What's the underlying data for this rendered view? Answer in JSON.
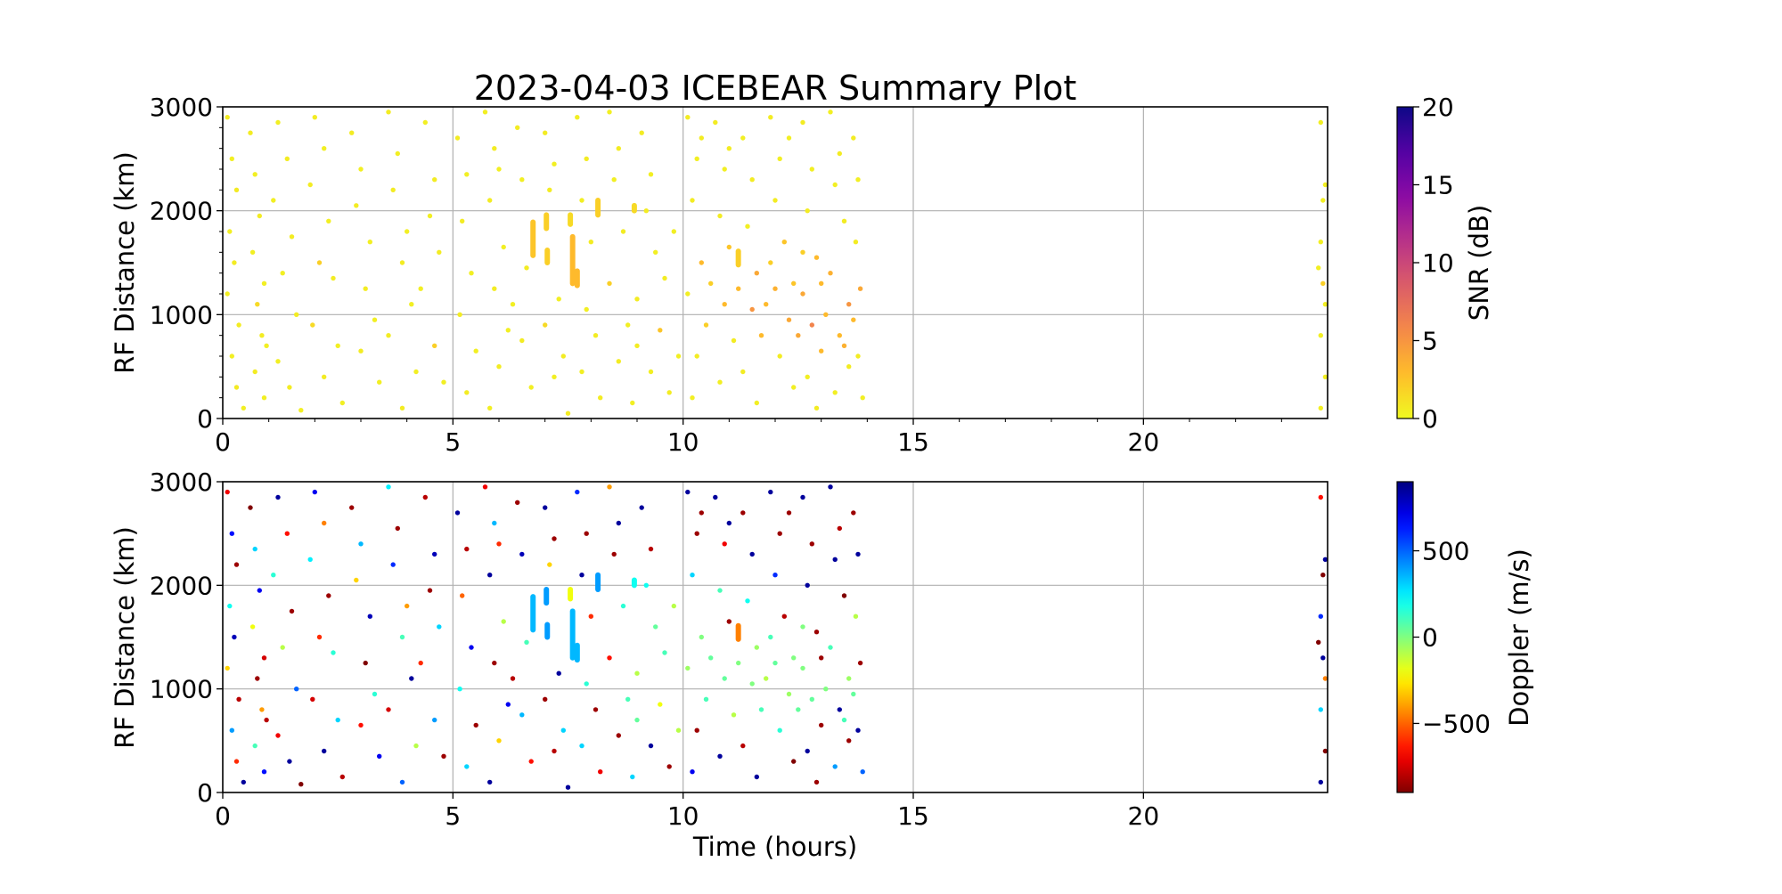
{
  "chart_data": [
    {
      "type": "scatter",
      "panel": "top",
      "title": "2023-04-03 ICEBEAR Summary Plot",
      "xlabel": "",
      "ylabel": "RF Distance (km)",
      "xlim": [
        0,
        24
      ],
      "ylim": [
        0,
        3000
      ],
      "xticks": [
        "0",
        "5",
        "10",
        "15",
        "20"
      ],
      "yticks": [
        "0",
        "1000",
        "2000",
        "3000"
      ],
      "grid": true,
      "color_variable": "snr",
      "colorbar": {
        "label": "SNR (dB)",
        "range": [
          0,
          20
        ],
        "ticks": [
          "0",
          "5",
          "10",
          "15",
          "20"
        ],
        "colormap": "plasma_r"
      }
    },
    {
      "type": "scatter",
      "panel": "bottom",
      "title": "",
      "xlabel": "Time (hours)",
      "ylabel": "RF Distance (km)",
      "xlim": [
        0,
        24
      ],
      "ylim": [
        0,
        3000
      ],
      "xticks": [
        "0",
        "5",
        "10",
        "15",
        "20"
      ],
      "yticks": [
        "0",
        "1000",
        "2000",
        "3000"
      ],
      "grid": true,
      "color_variable": "doppler",
      "colorbar": {
        "label": "Doppler (m/s)",
        "range": [
          -900,
          900
        ],
        "ticks": [
          "−500",
          "0",
          "500"
        ],
        "tick_values": [
          -500,
          0,
          500
        ],
        "colormap": "jet_r"
      }
    }
  ],
  "points_columns": [
    "time_hours",
    "rf_distance_km",
    "snr_db",
    "doppler_ms"
  ],
  "points": [
    [
      0.1,
      2900,
      0.6,
      -700
    ],
    [
      0.2,
      2500,
      0.5,
      650
    ],
    [
      0.3,
      2200,
      0.7,
      -850
    ],
    [
      0.15,
      1800,
      0.5,
      200
    ],
    [
      0.25,
      1500,
      0.6,
      800
    ],
    [
      0.1,
      1200,
      0.5,
      -300
    ],
    [
      0.35,
      900,
      0.6,
      -800
    ],
    [
      0.2,
      600,
      0.5,
      400
    ],
    [
      0.3,
      300,
      0.7,
      -600
    ],
    [
      0.45,
      100,
      0.5,
      850
    ],
    [
      0.6,
      2750,
      0.6,
      -900
    ],
    [
      0.7,
      2350,
      0.5,
      300
    ],
    [
      0.8,
      1950,
      0.6,
      700
    ],
    [
      0.65,
      1600,
      0.5,
      -200
    ],
    [
      0.9,
      1300,
      0.5,
      -750
    ],
    [
      0.75,
      1100,
      1.5,
      -850
    ],
    [
      0.85,
      800,
      0.6,
      -400
    ],
    [
      0.95,
      700,
      0.5,
      -800
    ],
    [
      0.7,
      450,
      0.6,
      100
    ],
    [
      0.9,
      200,
      0.5,
      650
    ],
    [
      1.2,
      2850,
      0.5,
      850
    ],
    [
      1.4,
      2500,
      0.6,
      -650
    ],
    [
      1.1,
      2100,
      0.5,
      150
    ],
    [
      1.5,
      1750,
      0.6,
      -850
    ],
    [
      1.3,
      1400,
      0.5,
      -100
    ],
    [
      1.6,
      1000,
      0.6,
      500
    ],
    [
      1.2,
      550,
      0.5,
      -700
    ],
    [
      1.45,
      300,
      0.6,
      850
    ],
    [
      1.7,
      80,
      0.5,
      -900
    ],
    [
      2.0,
      2900,
      0.6,
      700
    ],
    [
      2.2,
      2600,
      0.5,
      -450
    ],
    [
      1.9,
      2250,
      0.6,
      250
    ],
    [
      2.3,
      1900,
      0.5,
      -850
    ],
    [
      2.1,
      1500,
      2.0,
      -600
    ],
    [
      2.4,
      1350,
      0.6,
      150
    ],
    [
      1.95,
      900,
      1.5,
      -750
    ],
    [
      2.5,
      700,
      0.5,
      300
    ],
    [
      2.2,
      400,
      0.6,
      850
    ],
    [
      2.6,
      150,
      0.5,
      -800
    ],
    [
      2.8,
      2750,
      0.6,
      -850
    ],
    [
      3.0,
      2400,
      0.5,
      350
    ],
    [
      2.9,
      2050,
      0.6,
      -300
    ],
    [
      3.2,
      1700,
      0.5,
      800
    ],
    [
      3.1,
      1250,
      0.6,
      -900
    ],
    [
      3.3,
      950,
      0.5,
      150
    ],
    [
      3.0,
      650,
      0.6,
      -650
    ],
    [
      3.4,
      350,
      0.5,
      700
    ],
    [
      3.6,
      2950,
      0.6,
      250
    ],
    [
      3.8,
      2550,
      0.5,
      -850
    ],
    [
      3.7,
      2200,
      0.6,
      600
    ],
    [
      4.0,
      1800,
      0.5,
      -400
    ],
    [
      3.9,
      1500,
      0.6,
      100
    ],
    [
      4.1,
      1100,
      0.5,
      850
    ],
    [
      3.6,
      800,
      0.6,
      -750
    ],
    [
      4.2,
      450,
      0.5,
      -100
    ],
    [
      3.9,
      100,
      0.6,
      500
    ],
    [
      4.4,
      2850,
      0.5,
      -800
    ],
    [
      4.6,
      2300,
      0.6,
      800
    ],
    [
      4.5,
      1950,
      0.5,
      -850
    ],
    [
      4.7,
      1600,
      0.6,
      300
    ],
    [
      4.3,
      1250,
      0.5,
      -600
    ],
    [
      4.6,
      700,
      2.0,
      400
    ],
    [
      4.8,
      350,
      0.5,
      -850
    ],
    [
      5.1,
      2700,
      0.6,
      850
    ],
    [
      5.3,
      2350,
      0.5,
      -800
    ],
    [
      5.2,
      1900,
      0.6,
      -500
    ],
    [
      5.4,
      1400,
      0.5,
      700
    ],
    [
      5.15,
      1000,
      0.6,
      200
    ],
    [
      5.5,
      650,
      0.5,
      -850
    ],
    [
      5.3,
      250,
      0.6,
      300
    ],
    [
      5.7,
      2950,
      0.5,
      -700
    ],
    [
      5.9,
      2600,
      0.6,
      350
    ],
    [
      6.0,
      2400,
      0.5,
      -600
    ],
    [
      5.8,
      2100,
      0.6,
      850
    ],
    [
      6.1,
      1650,
      0.5,
      -100
    ],
    [
      5.9,
      1250,
      0.6,
      -850
    ],
    [
      6.2,
      850,
      0.5,
      700
    ],
    [
      6.0,
      500,
      0.6,
      -300
    ],
    [
      5.8,
      100,
      0.5,
      850
    ],
    [
      6.4,
      2800,
      0.6,
      -850
    ],
    [
      6.5,
      2300,
      0.5,
      800
    ],
    [
      6.6,
      1450,
      0.6,
      100
    ],
    [
      6.3,
      1100,
      0.5,
      -800
    ],
    [
      6.5,
      750,
      0.6,
      350
    ],
    [
      6.7,
      300,
      0.5,
      -650
    ],
    [
      7.0,
      2750,
      0.6,
      850
    ],
    [
      7.2,
      2450,
      0.5,
      -850
    ],
    [
      7.1,
      2200,
      0.6,
      -300
    ],
    [
      7.3,
      1150,
      0.5,
      850
    ],
    [
      7.0,
      900,
      1.5,
      -850
    ],
    [
      7.4,
      600,
      0.6,
      300
    ],
    [
      7.2,
      400,
      0.5,
      -800
    ],
    [
      7.5,
      50,
      0.6,
      850
    ],
    [
      7.7,
      2900,
      0.5,
      600
    ],
    [
      7.9,
      2500,
      0.6,
      -850
    ],
    [
      7.8,
      2100,
      0.5,
      850
    ],
    [
      8.0,
      1700,
      0.6,
      -600
    ],
    [
      7.9,
      1050,
      0.5,
      150
    ],
    [
      8.1,
      800,
      0.6,
      -850
    ],
    [
      7.8,
      450,
      0.5,
      300
    ],
    [
      8.2,
      200,
      0.6,
      -700
    ],
    [
      8.4,
      2950,
      0.5,
      -400
    ],
    [
      8.6,
      2600,
      0.6,
      850
    ],
    [
      8.5,
      2300,
      0.5,
      -850
    ],
    [
      8.7,
      1800,
      0.6,
      150
    ],
    [
      8.4,
      1300,
      2.0,
      -650
    ],
    [
      8.8,
      900,
      0.5,
      100
    ],
    [
      8.6,
      550,
      0.6,
      -850
    ],
    [
      8.9,
      150,
      0.5,
      300
    ],
    [
      9.1,
      2750,
      0.6,
      850
    ],
    [
      9.3,
      2350,
      0.5,
      -800
    ],
    [
      9.2,
      2000,
      0.6,
      200
    ],
    [
      9.4,
      1600,
      0.5,
      50
    ],
    [
      9.0,
      1150,
      0.6,
      -100
    ],
    [
      9.5,
      850,
      2.5,
      -200
    ],
    [
      9.3,
      450,
      0.5,
      850
    ],
    [
      9.7,
      250,
      0.6,
      -850
    ],
    [
      9.8,
      1800,
      0.5,
      -100
    ],
    [
      9.6,
      1350,
      0.6,
      100
    ],
    [
      10.1,
      2900,
      0.6,
      850
    ],
    [
      10.3,
      2500,
      0.5,
      -850
    ],
    [
      10.2,
      2100,
      0.6,
      300
    ],
    [
      10.4,
      1500,
      3.0,
      0
    ],
    [
      10.1,
      1200,
      0.5,
      -50
    ],
    [
      10.5,
      900,
      2.0,
      100
    ],
    [
      10.3,
      600,
      0.6,
      -850
    ],
    [
      10.2,
      200,
      0.5,
      700
    ],
    [
      10.7,
      2850,
      0.6,
      850
    ],
    [
      10.9,
      2400,
      0.5,
      -700
    ],
    [
      10.8,
      1950,
      0.6,
      100
    ],
    [
      11.0,
      1650,
      2.5,
      -850
    ],
    [
      10.9,
      1100,
      3.0,
      50
    ],
    [
      11.1,
      750,
      0.6,
      -100
    ],
    [
      10.8,
      350,
      0.5,
      850
    ],
    [
      11.3,
      2700,
      0.5,
      -850
    ],
    [
      11.5,
      2300,
      0.6,
      850
    ],
    [
      11.4,
      1850,
      0.5,
      200
    ],
    [
      11.6,
      1400,
      4.0,
      -50
    ],
    [
      11.5,
      1050,
      5.0,
      0
    ],
    [
      11.7,
      800,
      3.0,
      100
    ],
    [
      11.3,
      450,
      0.6,
      -800
    ],
    [
      11.6,
      150,
      0.5,
      850
    ],
    [
      11.9,
      2900,
      0.6,
      850
    ],
    [
      12.1,
      2500,
      0.5,
      -850
    ],
    [
      12.0,
      2100,
      0.6,
      600
    ],
    [
      12.2,
      1700,
      2.5,
      -800
    ],
    [
      12.0,
      1250,
      3.5,
      50
    ],
    [
      12.3,
      950,
      4.0,
      -50
    ],
    [
      12.1,
      600,
      0.6,
      150
    ],
    [
      12.4,
      300,
      0.5,
      -900
    ],
    [
      12.6,
      2850,
      0.6,
      850
    ],
    [
      12.8,
      2400,
      0.5,
      -850
    ],
    [
      12.7,
      2000,
      0.6,
      850
    ],
    [
      12.9,
      1550,
      3.0,
      -850
    ],
    [
      12.6,
      1200,
      4.0,
      0
    ],
    [
      12.8,
      900,
      6.0,
      50
    ],
    [
      13.0,
      650,
      3.0,
      -850
    ],
    [
      12.7,
      400,
      0.5,
      850
    ],
    [
      12.9,
      100,
      0.6,
      -850
    ],
    [
      13.2,
      2950,
      0.5,
      850
    ],
    [
      13.4,
      2550,
      0.6,
      -800
    ],
    [
      13.3,
      2250,
      0.5,
      850
    ],
    [
      13.5,
      1900,
      0.6,
      -900
    ],
    [
      13.2,
      1400,
      3.5,
      100
    ],
    [
      13.6,
      1100,
      5.0,
      -50
    ],
    [
      13.4,
      800,
      3.0,
      850
    ],
    [
      13.6,
      500,
      0.6,
      -850
    ],
    [
      13.3,
      250,
      0.5,
      400
    ],
    [
      13.7,
      2700,
      0.6,
      -850
    ],
    [
      13.8,
      2300,
      0.5,
      850
    ],
    [
      13.75,
      1700,
      0.6,
      -100
    ],
    [
      13.85,
      1250,
      4.0,
      -850
    ],
    [
      13.7,
      950,
      3.0,
      50
    ],
    [
      13.8,
      600,
      0.6,
      850
    ],
    [
      13.9,
      200,
      0.5,
      500
    ],
    [
      10.6,
      1300,
      2.0,
      50
    ],
    [
      11.2,
      1250,
      3.0,
      0
    ],
    [
      11.8,
      1100,
      3.0,
      -100
    ],
    [
      12.4,
      1300,
      2.5,
      0
    ],
    [
      12.5,
      800,
      4.0,
      50
    ],
    [
      13.1,
      1000,
      3.0,
      0
    ],
    [
      13.5,
      700,
      3.5,
      100
    ],
    [
      11.0,
      2600,
      0.6,
      850
    ],
    [
      12.3,
      2700,
      0.5,
      -850
    ],
    [
      10.4,
      2700,
      0.6,
      -850
    ],
    [
      11.9,
      1500,
      2.0,
      100
    ],
    [
      12.6,
      1600,
      2.0,
      0
    ],
    [
      13.0,
      1300,
      3.0,
      -850
    ],
    [
      9.9,
      600,
      0.5,
      -100
    ],
    [
      9.0,
      700,
      0.6,
      50
    ],
    [
      23.85,
      2850,
      0.5,
      -650
    ],
    [
      23.95,
      2250,
      0.5,
      850
    ],
    [
      23.9,
      2100,
      0.5,
      -900
    ],
    [
      23.85,
      1700,
      0.5,
      600
    ],
    [
      23.8,
      1450,
      0.5,
      -900
    ],
    [
      23.9,
      1300,
      2.0,
      850
    ],
    [
      23.95,
      1100,
      0.5,
      -450
    ],
    [
      23.85,
      800,
      0.5,
      300
    ],
    [
      23.95,
      400,
      0.5,
      -900
    ],
    [
      23.85,
      100,
      0.5,
      850
    ]
  ],
  "streaks_columns": [
    "time_hours",
    "rf_distance_start_km",
    "rf_distance_end_km",
    "snr_db",
    "doppler_ms"
  ],
  "streaks": [
    [
      6.74,
      1570,
      1890,
      2.5,
      350
    ],
    [
      7.03,
      1830,
      1960,
      2.0,
      400
    ],
    [
      7.05,
      1500,
      1620,
      2.0,
      400
    ],
    [
      7.6,
      1300,
      1750,
      3.0,
      350
    ],
    [
      7.7,
      1280,
      1420,
      3.0,
      350
    ],
    [
      8.15,
      1960,
      2100,
      2.0,
      400
    ],
    [
      8.94,
      2000,
      2050,
      1.5,
      200
    ],
    [
      7.55,
      1870,
      1960,
      1.5,
      -200
    ],
    [
      11.2,
      1480,
      1610,
      2.0,
      -450
    ]
  ]
}
